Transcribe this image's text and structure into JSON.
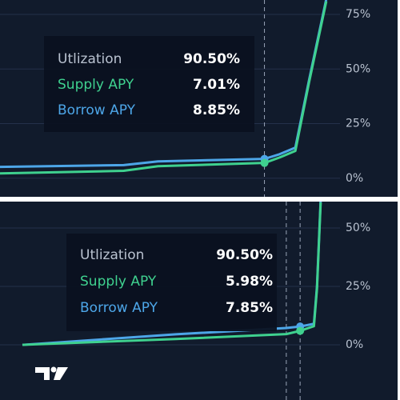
{
  "chart_data": [
    {
      "type": "line",
      "xlim": [
        52,
        101.5
      ],
      "ylim": [
        -8.5,
        81.6
      ],
      "yticks": [
        {
          "value": 0,
          "label": "0%"
        },
        {
          "value": 25,
          "label": "25%"
        },
        {
          "value": 50,
          "label": "50%"
        },
        {
          "value": 75,
          "label": "75%"
        }
      ],
      "grid": true,
      "vlines": [
        90.5
      ],
      "hover_x": 90.5,
      "series": [
        {
          "name": "Borrow APY",
          "color": "#4da6e8",
          "x": [
            52,
            70,
            75,
            90.5,
            92.7,
            95,
            97,
            99.5
          ],
          "values": [
            5.2,
            6.0,
            7.7,
            8.85,
            11,
            14,
            45,
            82
          ]
        },
        {
          "name": "Supply APY",
          "color": "#3fd18f",
          "x": [
            52,
            70,
            75,
            90.5,
            92.7,
            95,
            97,
            99.5
          ],
          "values": [
            2.2,
            3.4,
            5.5,
            7.01,
            9.5,
            12.5,
            44,
            81
          ]
        }
      ],
      "tooltip": {
        "rows": [
          {
            "label": "Utlization",
            "value": "90.50%"
          },
          {
            "label": "Supply APY",
            "value": "7.01%"
          },
          {
            "label": "Borrow APY",
            "value": "8.85%"
          }
        ]
      }
    },
    {
      "type": "line",
      "xlim": [
        -7.3,
        103.5
      ],
      "ylim": [
        -23.6,
        61.3
      ],
      "yticks": [
        {
          "value": 0,
          "label": "0%"
        },
        {
          "value": 25,
          "label": "25%"
        },
        {
          "value": 50,
          "label": "50%"
        }
      ],
      "grid": true,
      "vlines": [
        86,
        90.5
      ],
      "hover_x": 90.5,
      "series": [
        {
          "name": "Borrow APY",
          "color": "#4da6e8",
          "x": [
            0,
            50,
            86,
            90.5,
            95,
            96,
            97.2
          ],
          "values": [
            0,
            4.5,
            7.2,
            7.85,
            9,
            25,
            62
          ]
        },
        {
          "name": "Supply APY",
          "color": "#3fd18f",
          "x": [
            0,
            50,
            86,
            90.5,
            95,
            96,
            97.2
          ],
          "values": [
            0,
            2.5,
            4.6,
            5.98,
            8,
            24,
            61
          ]
        }
      ],
      "tooltip": {
        "rows": [
          {
            "label": "Utlization",
            "value": "90.50%"
          },
          {
            "label": "Supply APY",
            "value": "5.98%"
          },
          {
            "label": "Borrow APY",
            "value": "7.85%"
          }
        ]
      }
    }
  ]
}
